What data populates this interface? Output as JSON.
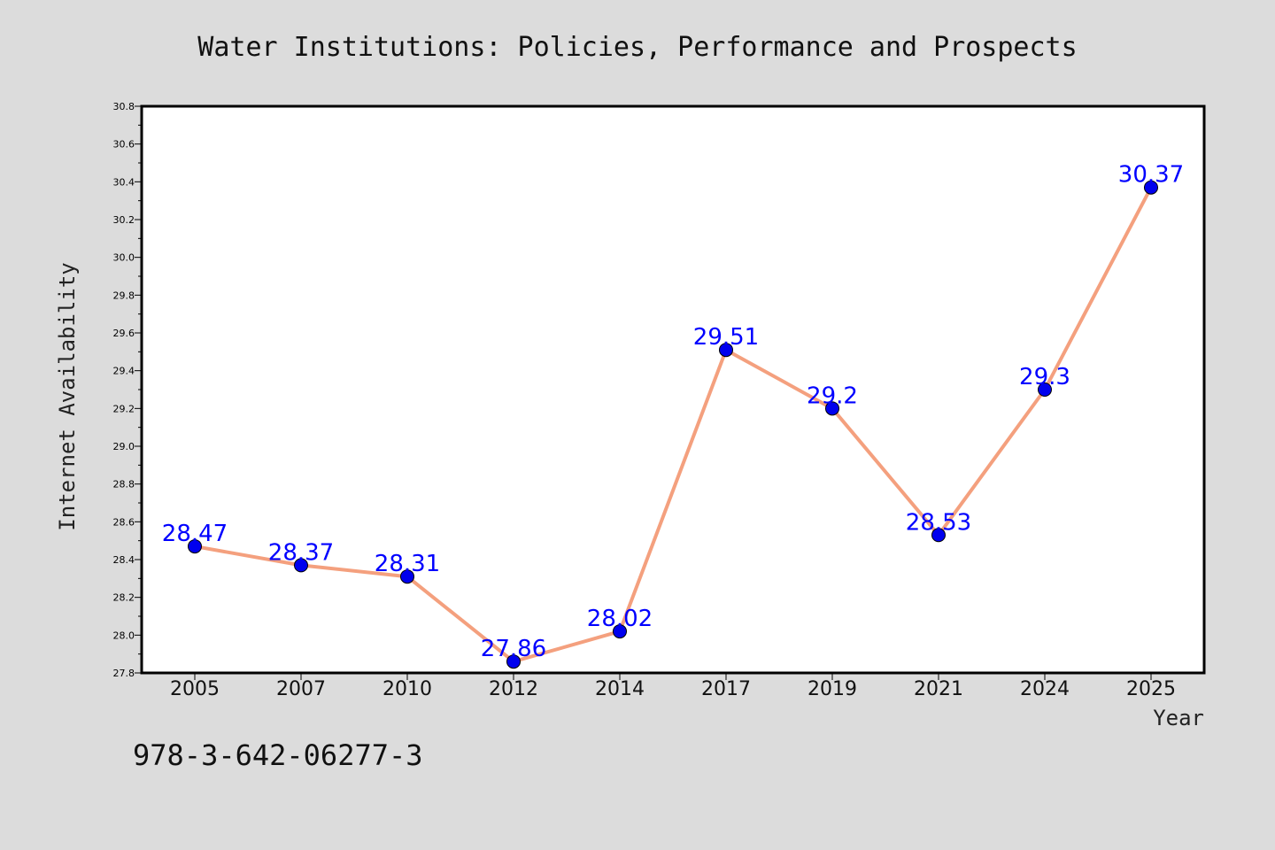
{
  "chart_data": {
    "type": "line",
    "title": "Water Institutions: Policies, Performance and Prospects",
    "xlabel": "Year",
    "ylabel": "Internet Availability",
    "categories": [
      "2005",
      "2007",
      "2010",
      "2012",
      "2014",
      "2017",
      "2019",
      "2021",
      "2024",
      "2025"
    ],
    "values": [
      28.47,
      28.37,
      28.31,
      27.86,
      28.02,
      29.51,
      29.2,
      28.53,
      29.3,
      30.37
    ],
    "data_labels": [
      "28.47",
      "28.37",
      "28.31",
      "27.86",
      "28.02",
      "29.51",
      "29.2",
      "28.53",
      "29.3",
      "30.37"
    ],
    "ylim": [
      27.8,
      30.8
    ],
    "yticks": [
      "27.8",
      "28.0",
      "28.2",
      "28.4",
      "28.6",
      "28.8",
      "29.0",
      "29.2",
      "29.4",
      "29.6",
      "29.8",
      "30.0",
      "30.2",
      "30.4",
      "30.6",
      "30.8"
    ],
    "grid": false,
    "line_color": "#f4a07e",
    "marker_color": "#0000ee",
    "label_color": "#0000ff"
  },
  "footer": {
    "isbn": "978-3-642-06277-3"
  }
}
